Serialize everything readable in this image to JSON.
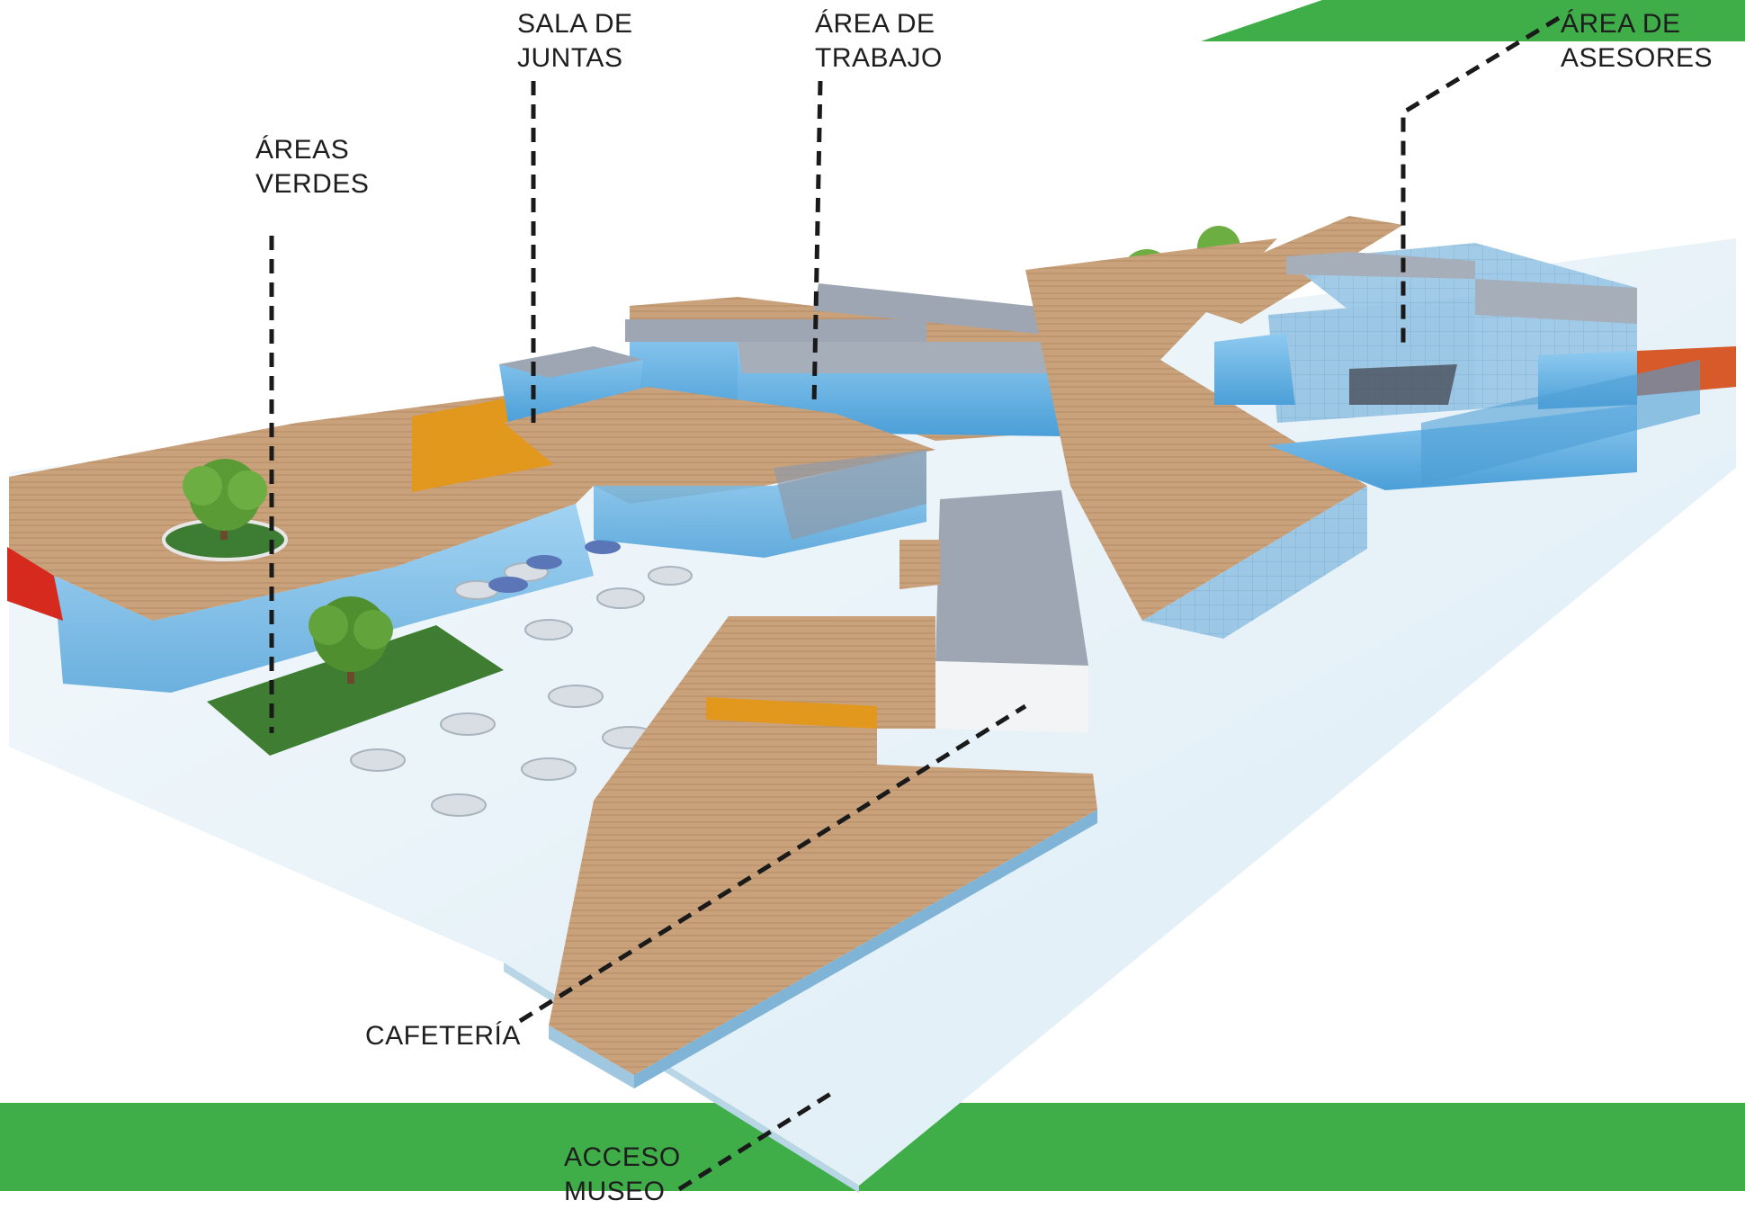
{
  "labels": {
    "areas_verdes": [
      "ÁREAS",
      "VERDES"
    ],
    "sala_de_juntas": [
      "SALA DE",
      "JUNTAS"
    ],
    "area_de_trabajo": [
      "ÁREA DE",
      "TRABAJO"
    ],
    "area_de_asesores": [
      "ÁREA DE",
      "ASESORES"
    ],
    "cafeteria": [
      "CAFETERÍA"
    ],
    "acceso_museo": [
      "ACCESO",
      "MUSEO"
    ]
  },
  "colors": {
    "band_green": "#3fae49",
    "deck_wood": "#c9a27c",
    "glass_blue": "#64b2e4",
    "roof_grey": "#9da6b2",
    "platform": "#e9f3f8",
    "accent_orange": "#e1981c",
    "accent_red": "#d62a1e",
    "lawn": "#3f7d33"
  },
  "icons": {
    "trees": "tree-icon",
    "tables": "round-table-icon"
  }
}
